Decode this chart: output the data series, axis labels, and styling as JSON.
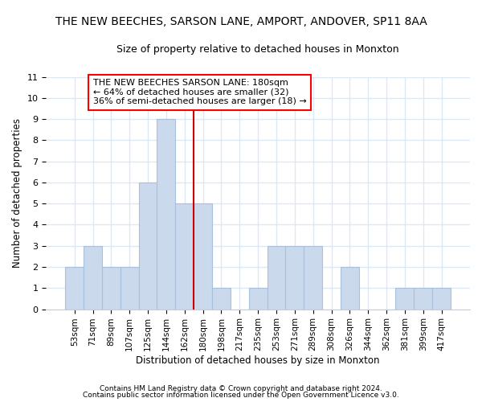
{
  "title": "THE NEW BEECHES, SARSON LANE, AMPORT, ANDOVER, SP11 8AA",
  "subtitle": "Size of property relative to detached houses in Monxton",
  "xlabel": "Distribution of detached houses by size in Monxton",
  "ylabel": "Number of detached properties",
  "bar_color": "#cad9ec",
  "bar_edge_color": "#a8c0dc",
  "background_color": "#ffffff",
  "fig_background": "#ffffff",
  "grid_color": "#dde8f5",
  "categories": [
    "53sqm",
    "71sqm",
    "89sqm",
    "107sqm",
    "125sqm",
    "144sqm",
    "162sqm",
    "180sqm",
    "198sqm",
    "217sqm",
    "235sqm",
    "253sqm",
    "271sqm",
    "289sqm",
    "308sqm",
    "326sqm",
    "344sqm",
    "362sqm",
    "381sqm",
    "399sqm",
    "417sqm"
  ],
  "values": [
    2,
    3,
    2,
    2,
    6,
    9,
    5,
    5,
    1,
    0,
    1,
    3,
    3,
    3,
    0,
    2,
    0,
    0,
    1,
    1,
    1
  ],
  "marker_index": 7,
  "marker_color": "#cc0000",
  "ylim": [
    0,
    11
  ],
  "yticks": [
    0,
    1,
    2,
    3,
    4,
    5,
    6,
    7,
    8,
    9,
    10,
    11
  ],
  "annotation_title": "THE NEW BEECHES SARSON LANE: 180sqm",
  "annotation_line1": "← 64% of detached houses are smaller (32)",
  "annotation_line2": "36% of semi-detached houses are larger (18) →",
  "footer1": "Contains HM Land Registry data © Crown copyright and database right 2024.",
  "footer2": "Contains public sector information licensed under the Open Government Licence v3.0."
}
